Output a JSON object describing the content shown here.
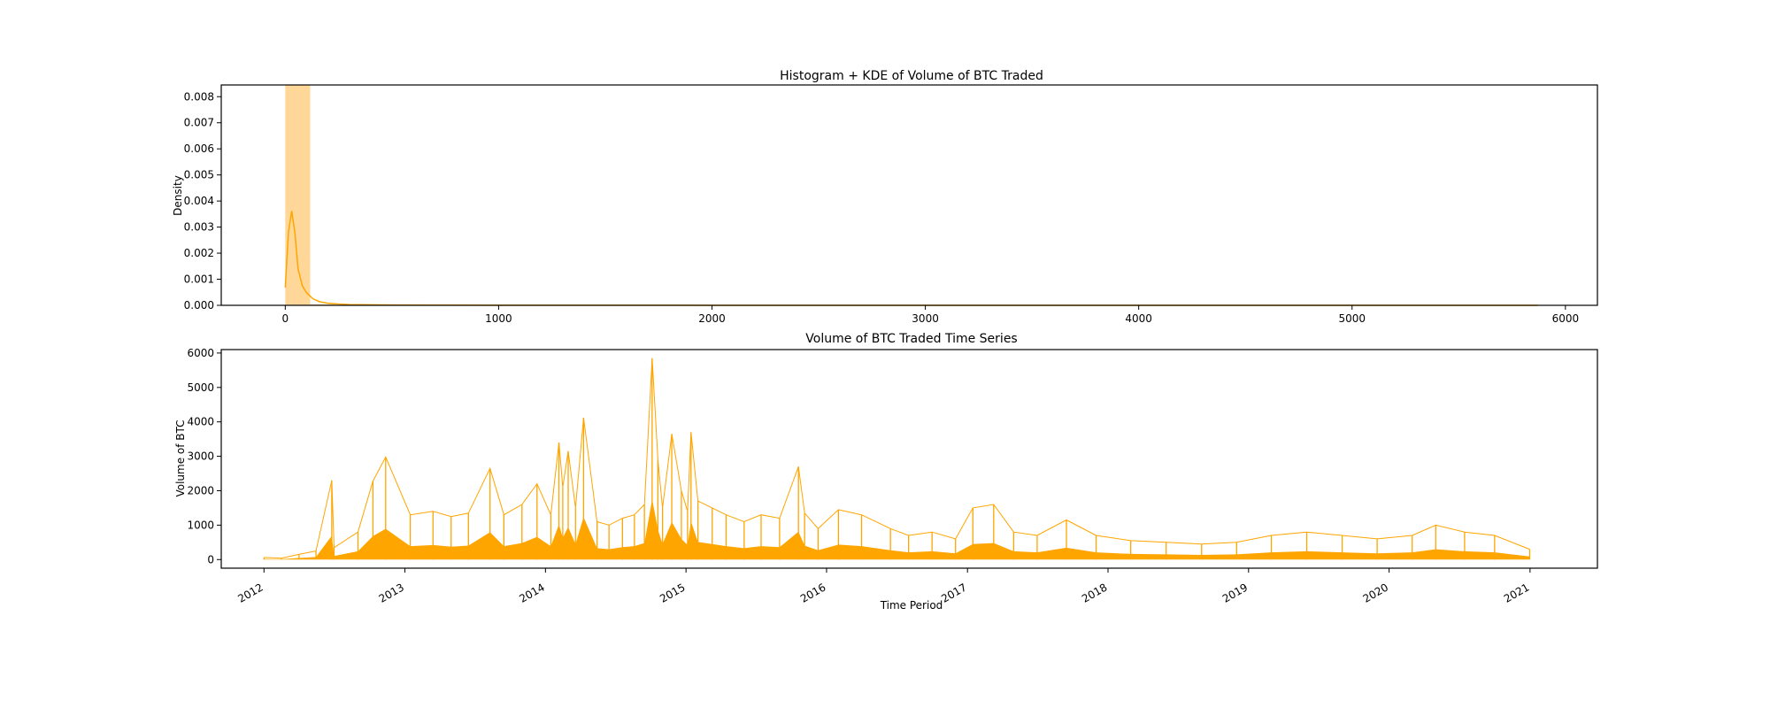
{
  "colors": {
    "accent": "#ffa500",
    "hist_fill": "#ffd899",
    "text": "#000000"
  },
  "chart_data": [
    {
      "type": "histogram",
      "title": "Histogram + KDE of Volume of BTC Traded",
      "xlabel": "",
      "ylabel": "Density",
      "xlim": [
        -300,
        6150
      ],
      "ylim": [
        0,
        0.00845
      ],
      "xticks": [
        0,
        1000,
        2000,
        3000,
        4000,
        5000,
        6000
      ],
      "xtick_labels": [
        "0",
        "1000",
        "2000",
        "3000",
        "4000",
        "5000",
        "6000"
      ],
      "yticks": [
        0,
        0.001,
        0.002,
        0.003,
        0.004,
        0.005,
        0.006,
        0.007,
        0.008
      ],
      "ytick_labels": [
        "0.000",
        "0.001",
        "0.002",
        "0.003",
        "0.004",
        "0.005",
        "0.006",
        "0.007",
        "0.008"
      ],
      "bin_width": 117,
      "bins": [
        {
          "x0": 0,
          "x1": 117,
          "density": 0.00845
        },
        {
          "x0": 117,
          "x1": 234,
          "density": 4e-05
        },
        {
          "x0": 234,
          "x1": 351,
          "density": 1e-05
        }
      ],
      "kde": {
        "x": [
          0,
          15,
          30,
          45,
          60,
          80,
          100,
          130,
          160,
          200,
          250,
          300,
          400,
          500,
          700,
          1000,
          1500,
          2000,
          3000,
          4000,
          5000,
          5870
        ],
        "y": [
          0.00068,
          0.0028,
          0.00362,
          0.0028,
          0.0014,
          0.00075,
          0.00048,
          0.00025,
          0.00014,
          8e-05,
          5e-05,
          3e-05,
          2e-05,
          1.2e-05,
          8e-06,
          5e-06,
          3e-06,
          2e-06,
          1e-06,
          1e-06,
          1e-06,
          0.0
        ]
      }
    },
    {
      "type": "line",
      "title": "Volume of BTC Traded Time Series",
      "xlabel": "Time Period",
      "ylabel": "Volume of BTC",
      "xlim": [
        "2011-09-12",
        "2021-06-25"
      ],
      "ylim": [
        -250,
        6100
      ],
      "xticks": [
        "2012-01-01",
        "2013-01-01",
        "2014-01-01",
        "2015-01-01",
        "2016-01-01",
        "2017-01-01",
        "2018-01-01",
        "2019-01-01",
        "2020-01-01",
        "2021-01-01"
      ],
      "xtick_labels": [
        "2012",
        "2013",
        "2014",
        "2015",
        "2016",
        "2017",
        "2018",
        "2019",
        "2020",
        "2021"
      ],
      "yticks": [
        0,
        1000,
        2000,
        3000,
        4000,
        5000,
        6000
      ],
      "ytick_labels": [
        "0",
        "1000",
        "2000",
        "3000",
        "4000",
        "5000",
        "6000"
      ],
      "series": [
        {
          "x": [
            "2012-01-01",
            "2012-02-15",
            "2012-04-01",
            "2012-05-15",
            "2012-06-25",
            "2012-07-01",
            "2012-09-01",
            "2012-10-10",
            "2012-11-12",
            "2013-01-15",
            "2013-03-15",
            "2013-05-01",
            "2013-06-15",
            "2013-08-10",
            "2013-09-15",
            "2013-11-01",
            "2013-12-10",
            "2014-01-15",
            "2014-02-05",
            "2014-02-15",
            "2014-03-01",
            "2014-03-20",
            "2014-04-10",
            "2014-05-15",
            "2014-06-15",
            "2014-07-20",
            "2014-08-20",
            "2014-09-15",
            "2014-10-05",
            "2014-10-20",
            "2014-11-01",
            "2014-11-25",
            "2014-12-20",
            "2015-01-05",
            "2015-01-14",
            "2015-02-01",
            "2015-03-10",
            "2015-04-15",
            "2015-06-01",
            "2015-07-15",
            "2015-09-01",
            "2015-10-20",
            "2015-11-05",
            "2015-12-10",
            "2016-02-01",
            "2016-04-01",
            "2016-06-15",
            "2016-08-01",
            "2016-10-01",
            "2016-12-01",
            "2017-01-15",
            "2017-03-10",
            "2017-05-01",
            "2017-07-01",
            "2017-09-15",
            "2017-12-01",
            "2018-03-01",
            "2018-06-01",
            "2018-09-01",
            "2018-12-01",
            "2019-03-01",
            "2019-06-01",
            "2019-09-01",
            "2019-12-01",
            "2020-03-01",
            "2020-05-01",
            "2020-07-15",
            "2020-10-01",
            "2020-12-31"
          ],
          "values": [
            60,
            40,
            150,
            250,
            2300,
            350,
            800,
            2280,
            2980,
            1300,
            1400,
            1250,
            1350,
            2650,
            1300,
            1600,
            2200,
            1300,
            3400,
            2100,
            3150,
            1500,
            4120,
            1100,
            1000,
            1200,
            1300,
            1600,
            5850,
            2900,
            1500,
            3650,
            2000,
            1400,
            3700,
            1700,
            1500,
            1300,
            1100,
            1300,
            1200,
            2700,
            1350,
            900,
            1450,
            1300,
            900,
            700,
            800,
            600,
            1500,
            1600,
            800,
            700,
            1150,
            700,
            550,
            500,
            450,
            500,
            700,
            800,
            700,
            600,
            700,
            1000,
            800,
            700,
            300
          ]
        }
      ]
    }
  ]
}
